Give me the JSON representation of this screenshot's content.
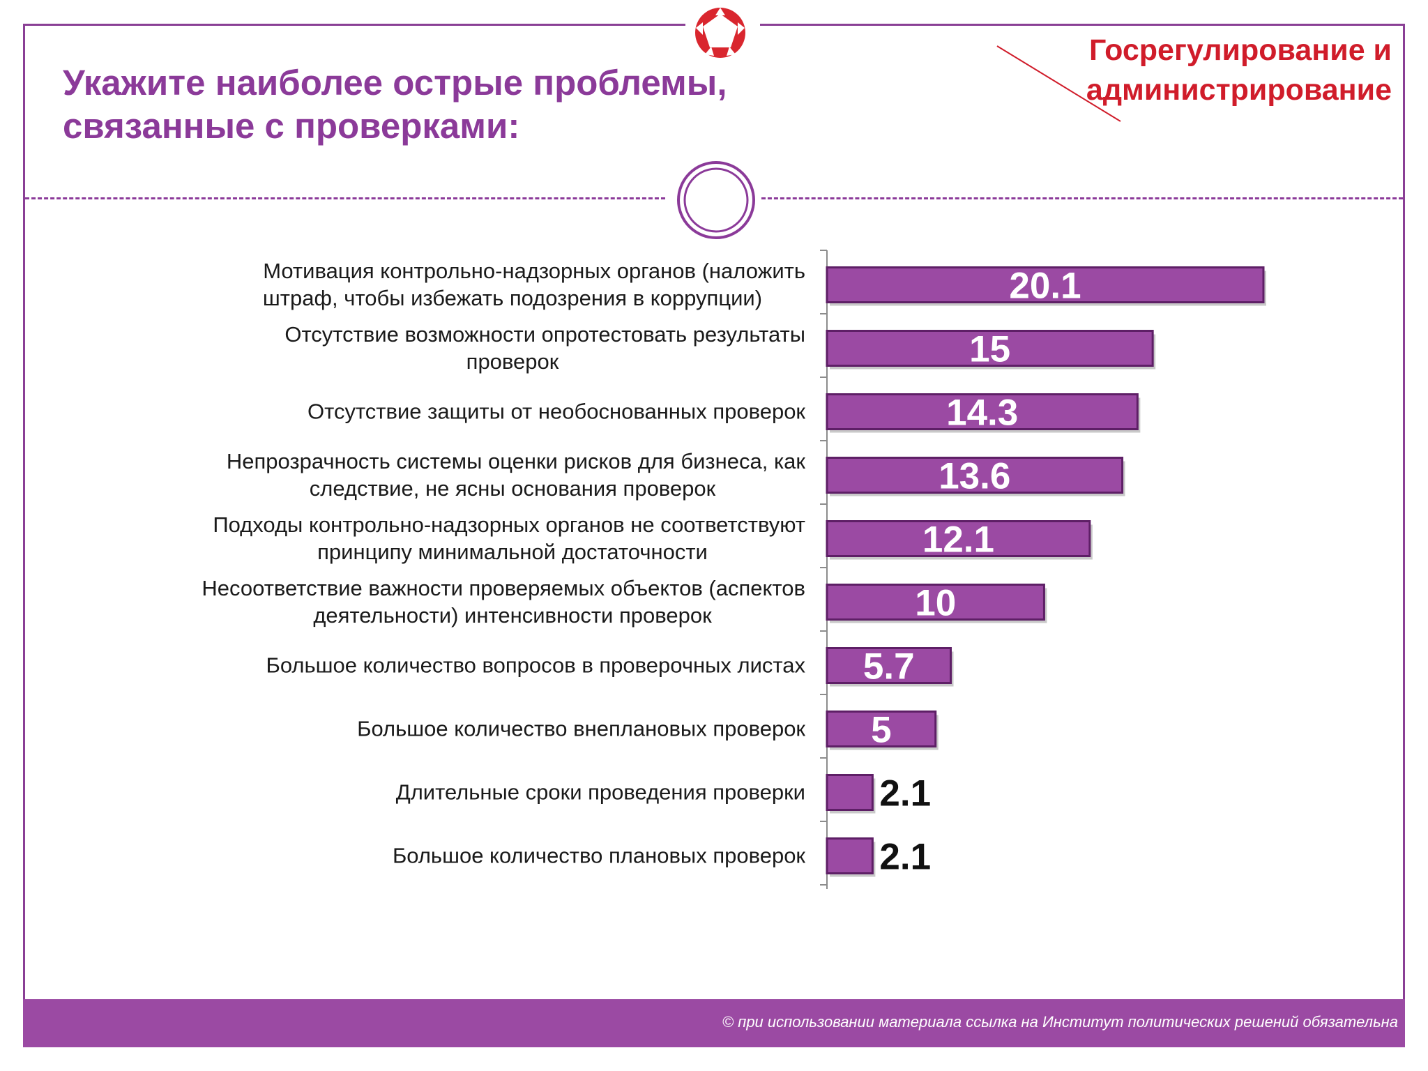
{
  "title_lines": [
    "Укажите наиболее острые проблемы,",
    "связанные с проверками:"
  ],
  "section_lines": [
    "Госрегулирование и",
    "администрирование"
  ],
  "footer_note": "© при использовании материала ссылка на Институт политических решений обязательна",
  "colors": {
    "accent": "#8b3a99",
    "bar": "#9b4aa3",
    "bar_edge": "#5e1f66",
    "section": "#d01c2a",
    "logo": "#d9262e"
  },
  "chart_data": {
    "type": "bar",
    "orientation": "horizontal",
    "title": "Укажите наиболее острые проблемы, связанные с проверками:",
    "xlabel": "",
    "ylabel": "",
    "xlim": [
      0,
      20.1
    ],
    "categories": [
      [
        "Мотивация контрольно-надзорных органов (наложить",
        "штраф, чтобы избежать подозрения в коррупции)"
      ],
      [
        "Отсутствие возможности опротестовать результаты",
        "проверок"
      ],
      [
        "Отсутствие защиты от необоснованных проверок"
      ],
      [
        "Непрозрачность системы оценки рисков для бизнеса, как",
        "следствие, не ясны основания проверок"
      ],
      [
        "Подходы контрольно-надзорных органов не соответствуют",
        "принципу минимальной достаточности"
      ],
      [
        "Несоответствие важности проверяемых объектов (аспектов",
        "деятельности) интенсивности проверок"
      ],
      [
        "Большое количество вопросов в проверочных листах"
      ],
      [
        "Большое количество внеплановых проверок"
      ],
      [
        "Длительные сроки проведения проверки"
      ],
      [
        "Большое количество плановых проверок"
      ]
    ],
    "values": [
      20.1,
      15,
      14.3,
      13.6,
      12.1,
      10,
      5.7,
      5,
      2.1,
      2.1
    ],
    "labels": [
      "20.1",
      "15",
      "14.3",
      "13.6",
      "12.1",
      "10",
      "5.7",
      "5",
      "2.1",
      "2.1"
    ]
  }
}
